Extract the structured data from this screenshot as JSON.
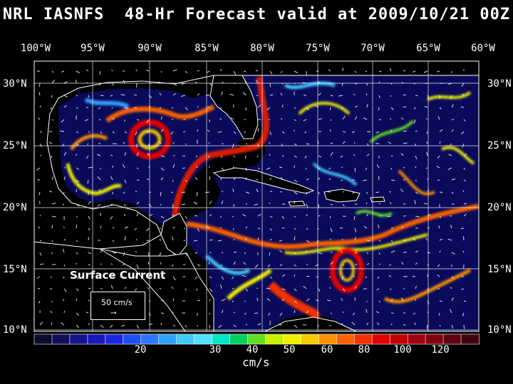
{
  "title": "NRL IASNFS  48-Hr Forecast valid at 2009/10/21 00Z",
  "lon_labels": [
    "100°W",
    "95°W",
    "90°W",
    "85°W",
    "80°W",
    "75°W",
    "70°W",
    "65°W",
    "60°W"
  ],
  "lat_labels": [
    "30°N",
    "25°N",
    "20°N",
    "15°N",
    "10°N"
  ],
  "legend": {
    "title": "Surface Current",
    "scale_label": "50 cm/s"
  },
  "colorbar": {
    "unit": "cm/s",
    "tick_labels": [
      "20",
      "30",
      "40",
      "50",
      "60",
      "80",
      "100",
      "120"
    ],
    "colors": [
      "#0b0b2e",
      "#10105a",
      "#14148a",
      "#1818b8",
      "#1c28e0",
      "#1e50f0",
      "#2878f8",
      "#30a0ff",
      "#40c8ff",
      "#50e0ff",
      "#00e8c8",
      "#00d060",
      "#60e020",
      "#c8f000",
      "#f0f000",
      "#f8c800",
      "#f89000",
      "#f86000",
      "#f03000",
      "#e00000",
      "#c00000",
      "#a00010",
      "#800010",
      "#600010",
      "#400010"
    ]
  },
  "colors": {
    "background": "#000000",
    "ocean_low": "#0a0a50",
    "land": "#000000",
    "coast": "#ffffff"
  }
}
